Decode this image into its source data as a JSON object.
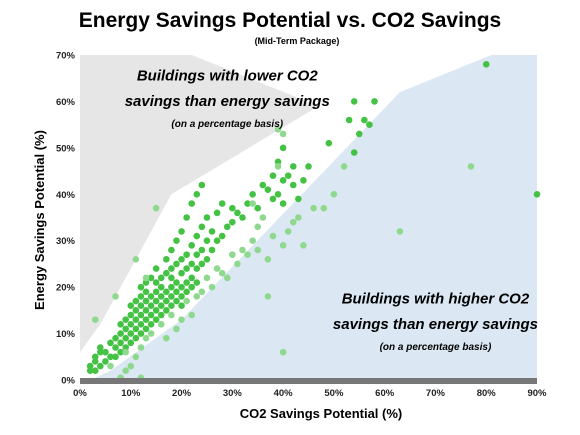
{
  "colors": {
    "upper_region": "#e6e6e6",
    "lower_region": "#dbe8f4",
    "point_dark": "#44c244",
    "point_light": "#8fd98f",
    "axis_bar": "#777777"
  },
  "chart_data": {
    "type": "scatter",
    "title": "Energy Savings Potential vs. CO2 Savings",
    "subtitle": "(Mid-Term Package)",
    "xlabel": "CO2 Savings Potential (%)",
    "ylabel": "Energy Savings Potential  (%)",
    "xlim": [
      0,
      90
    ],
    "ylim": [
      0,
      70
    ],
    "x_ticks": [
      "0%",
      "10%",
      "20%",
      "30%",
      "40%",
      "50%",
      "60%",
      "70%",
      "80%",
      "90%"
    ],
    "y_ticks": [
      "0%",
      "10%",
      "20%",
      "30%",
      "40%",
      "50%",
      "60%",
      "70%"
    ],
    "grid": false,
    "annotations": [
      {
        "text": "Buildings with lower CO2",
        "style": "main",
        "x": 29,
        "y": 64.5
      },
      {
        "text": "savings than energy savings",
        "style": "main",
        "x": 29,
        "y": 59
      },
      {
        "text": "(on a percentage basis)",
        "style": "sub",
        "x": 29,
        "y": 54.5
      },
      {
        "text": "Buildings with higher CO2",
        "style": "main",
        "x": 70,
        "y": 16.5
      },
      {
        "text": "savings than energy savings",
        "style": "main",
        "x": 70,
        "y": 11
      },
      {
        "text": "(on a percentage basis)",
        "style": "sub",
        "x": 70,
        "y": 6.5
      }
    ],
    "regions": {
      "upper": [
        [
          0,
          6
        ],
        [
          0,
          70
        ],
        [
          22,
          70
        ],
        [
          47,
          59
        ],
        [
          18,
          40
        ],
        [
          4,
          12
        ]
      ],
      "lower": [
        [
          2,
          0
        ],
        [
          90,
          0
        ],
        [
          90,
          74
        ],
        [
          63,
          62
        ],
        [
          20,
          13
        ],
        [
          6,
          2
        ]
      ]
    },
    "series": [
      {
        "shade": "dark",
        "points": [
          [
            2,
            2
          ],
          [
            2,
            3
          ],
          [
            3,
            2
          ],
          [
            3,
            4
          ],
          [
            3,
            5
          ],
          [
            4,
            3
          ],
          [
            4,
            6
          ],
          [
            4,
            7
          ],
          [
            5,
            4
          ],
          [
            5,
            6
          ],
          [
            6,
            5
          ],
          [
            6,
            8
          ],
          [
            7,
            5
          ],
          [
            7,
            7
          ],
          [
            7,
            9
          ],
          [
            8,
            6
          ],
          [
            8,
            8
          ],
          [
            8,
            10
          ],
          [
            8,
            12
          ],
          [
            9,
            7
          ],
          [
            9,
            9
          ],
          [
            9,
            11
          ],
          [
            9,
            13
          ],
          [
            10,
            8
          ],
          [
            10,
            10
          ],
          [
            10,
            12
          ],
          [
            10,
            14
          ],
          [
            10,
            16
          ],
          [
            11,
            9
          ],
          [
            11,
            11
          ],
          [
            11,
            13
          ],
          [
            11,
            15
          ],
          [
            11,
            17
          ],
          [
            12,
            10
          ],
          [
            12,
            12
          ],
          [
            12,
            14
          ],
          [
            12,
            16
          ],
          [
            12,
            18
          ],
          [
            12,
            20
          ],
          [
            13,
            11
          ],
          [
            13,
            13
          ],
          [
            13,
            15
          ],
          [
            13,
            17
          ],
          [
            13,
            19
          ],
          [
            13,
            21
          ],
          [
            14,
            12
          ],
          [
            14,
            14
          ],
          [
            14,
            16
          ],
          [
            14,
            18
          ],
          [
            14,
            22
          ],
          [
            15,
            13
          ],
          [
            15,
            15
          ],
          [
            15,
            17
          ],
          [
            15,
            19
          ],
          [
            15,
            21
          ],
          [
            15,
            24
          ],
          [
            16,
            14
          ],
          [
            16,
            16
          ],
          [
            16,
            18
          ],
          [
            16,
            20
          ],
          [
            16,
            22
          ],
          [
            17,
            15
          ],
          [
            17,
            17
          ],
          [
            17,
            19
          ],
          [
            17,
            23
          ],
          [
            17,
            26
          ],
          [
            18,
            16
          ],
          [
            18,
            18
          ],
          [
            18,
            20
          ],
          [
            18,
            22
          ],
          [
            18,
            24
          ],
          [
            18,
            28
          ],
          [
            19,
            17
          ],
          [
            19,
            19
          ],
          [
            19,
            21
          ],
          [
            19,
            25
          ],
          [
            19,
            30
          ],
          [
            20,
            16
          ],
          [
            20,
            18
          ],
          [
            20,
            20
          ],
          [
            20,
            23
          ],
          [
            20,
            26
          ],
          [
            20,
            32
          ],
          [
            21,
            19
          ],
          [
            21,
            21
          ],
          [
            21,
            24
          ],
          [
            21,
            27
          ],
          [
            21,
            35
          ],
          [
            22,
            20
          ],
          [
            22,
            22
          ],
          [
            22,
            25
          ],
          [
            22,
            29
          ],
          [
            22,
            38
          ],
          [
            23,
            21
          ],
          [
            23,
            24
          ],
          [
            23,
            27
          ],
          [
            23,
            31
          ],
          [
            23,
            40
          ],
          [
            24,
            25
          ],
          [
            24,
            28
          ],
          [
            24,
            33
          ],
          [
            24,
            42
          ],
          [
            25,
            26
          ],
          [
            25,
            30
          ],
          [
            25,
            35
          ],
          [
            26,
            28
          ],
          [
            26,
            32
          ],
          [
            27,
            30
          ],
          [
            27,
            36
          ],
          [
            28,
            31
          ],
          [
            28,
            38
          ],
          [
            29,
            33
          ],
          [
            30,
            34
          ],
          [
            30,
            37
          ],
          [
            31,
            36
          ],
          [
            32,
            35
          ],
          [
            33,
            38
          ],
          [
            34,
            40
          ],
          [
            35,
            37
          ],
          [
            36,
            42
          ],
          [
            37,
            41
          ],
          [
            38,
            39
          ],
          [
            38,
            44
          ],
          [
            39,
            40
          ],
          [
            39,
            47
          ],
          [
            40,
            38
          ],
          [
            40,
            43
          ],
          [
            40,
            50
          ],
          [
            41,
            44
          ],
          [
            42,
            42
          ],
          [
            42,
            46
          ],
          [
            43,
            39
          ],
          [
            44,
            43
          ],
          [
            45,
            46
          ],
          [
            49,
            51
          ],
          [
            53,
            56
          ],
          [
            54,
            49
          ],
          [
            54,
            60
          ],
          [
            55,
            53
          ],
          [
            56,
            56
          ],
          [
            57,
            55
          ],
          [
            58,
            60
          ],
          [
            80,
            68
          ],
          [
            90,
            40
          ]
        ]
      },
      {
        "shade": "light",
        "points": [
          [
            3,
            13
          ],
          [
            6,
            3
          ],
          [
            7,
            18
          ],
          [
            8,
            0.5
          ],
          [
            9,
            2
          ],
          [
            9,
            6
          ],
          [
            10,
            3
          ],
          [
            11,
            5
          ],
          [
            11,
            26
          ],
          [
            12,
            0.5
          ],
          [
            12,
            7
          ],
          [
            13,
            9
          ],
          [
            13,
            22
          ],
          [
            14,
            10
          ],
          [
            15,
            37
          ],
          [
            16,
            12
          ],
          [
            17,
            9
          ],
          [
            18,
            14
          ],
          [
            19,
            11
          ],
          [
            20,
            13
          ],
          [
            21,
            17
          ],
          [
            22,
            14
          ],
          [
            23,
            18
          ],
          [
            24,
            19
          ],
          [
            25,
            22
          ],
          [
            26,
            20
          ],
          [
            27,
            24
          ],
          [
            28,
            23
          ],
          [
            29,
            22
          ],
          [
            30,
            27
          ],
          [
            31,
            25
          ],
          [
            32,
            28
          ],
          [
            33,
            27
          ],
          [
            34,
            30
          ],
          [
            34,
            38
          ],
          [
            35,
            28
          ],
          [
            35,
            33
          ],
          [
            36,
            35
          ],
          [
            37,
            18
          ],
          [
            37,
            26
          ],
          [
            38,
            31
          ],
          [
            39,
            46
          ],
          [
            39,
            54
          ],
          [
            40,
            6
          ],
          [
            40,
            29
          ],
          [
            40,
            53
          ],
          [
            41,
            32
          ],
          [
            42,
            34
          ],
          [
            43,
            35
          ],
          [
            44,
            29
          ],
          [
            46,
            37
          ],
          [
            48,
            37
          ],
          [
            50,
            40
          ],
          [
            52,
            46
          ],
          [
            63,
            32
          ],
          [
            77,
            46
          ]
        ]
      }
    ]
  }
}
